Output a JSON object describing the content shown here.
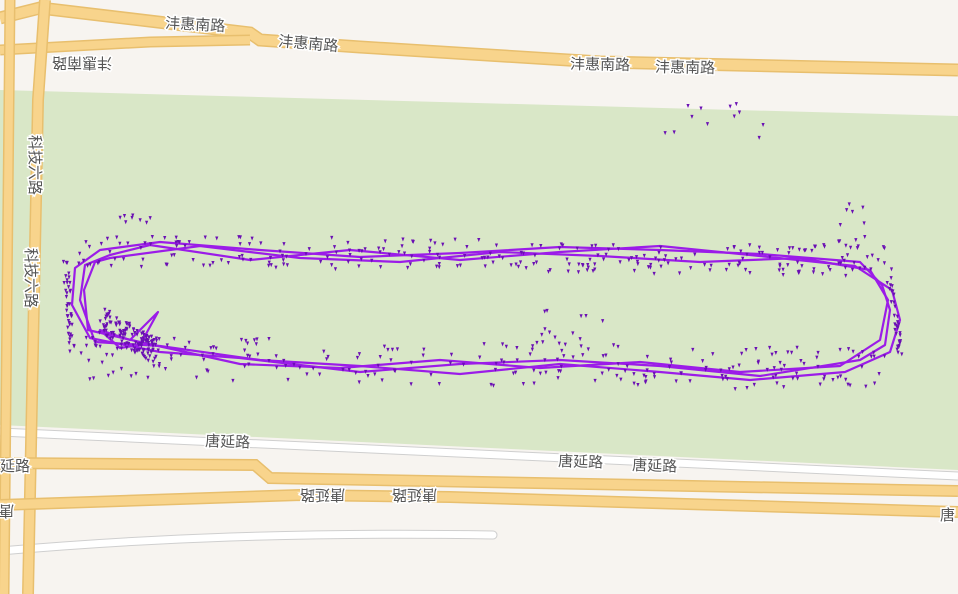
{
  "map": {
    "colors": {
      "background": "#f7f4f0",
      "park": "#d9e7c7",
      "major_road": "#f8d48c",
      "major_road_edge": "#e8bf6e",
      "minor_road": "#ffffff",
      "minor_road_edge": "#cfcfcf",
      "track": "#9b1ce8",
      "point": "#6a0fb3"
    },
    "road_labels": {
      "fenghui_1": "沣惠南路",
      "fenghui_2": "沣惠南路",
      "fenghui_3": "沣惠南路",
      "fenghui_4": "沣惠南路",
      "fenghui_mirror": "沣惠南路",
      "keji6_1": "科技六路",
      "keji6_2": "科技六路",
      "tangyan_1": "唐延路",
      "tangyan_2": "唐延路",
      "tangyan_3": "唐延路",
      "tangyan_left": "延路",
      "tangyan_m1": "唐延路",
      "tangyan_m2": "唐延路",
      "tangyan_left2": "唐",
      "tangyan_right": "唐"
    },
    "icons": {
      "gps_point": "gps-point-icon"
    }
  }
}
